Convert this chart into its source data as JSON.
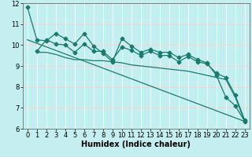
{
  "xlabel": "Humidex (Indice chaleur)",
  "bg_color": "#c5eef0",
  "line_color": "#1a7a6e",
  "grid_color": "#ffffff",
  "grid_hcolor": "#ffbbbb",
  "xlim": [
    -0.5,
    23.5
  ],
  "ylim": [
    6,
    12
  ],
  "xticks": [
    0,
    1,
    2,
    3,
    4,
    5,
    6,
    7,
    8,
    9,
    10,
    11,
    12,
    13,
    14,
    15,
    16,
    17,
    18,
    19,
    20,
    21,
    22,
    23
  ],
  "yticks": [
    6,
    7,
    8,
    9,
    10,
    11,
    12
  ],
  "line1_x": [
    0,
    1,
    2,
    3,
    4,
    5,
    6,
    7,
    8,
    9,
    10,
    11,
    12,
    13,
    14,
    15,
    16,
    17,
    18,
    19,
    20,
    21,
    22,
    23
  ],
  "line1_y": [
    11.8,
    10.25,
    10.2,
    10.55,
    10.3,
    10.05,
    10.55,
    9.95,
    9.6,
    9.2,
    10.3,
    9.95,
    9.65,
    9.8,
    9.65,
    9.65,
    9.4,
    9.55,
    9.3,
    9.15,
    8.55,
    7.5,
    7.1,
    6.35
  ],
  "line2_x": [
    1,
    2,
    3,
    4,
    5,
    6,
    7,
    8,
    9,
    10,
    11,
    12,
    13,
    14,
    15,
    16,
    17,
    18,
    19,
    20,
    21,
    22,
    23
  ],
  "line2_y": [
    9.7,
    10.25,
    10.05,
    10.0,
    9.65,
    10.05,
    9.7,
    9.7,
    9.3,
    9.9,
    9.75,
    9.5,
    9.7,
    9.5,
    9.5,
    9.2,
    9.45,
    9.2,
    9.1,
    8.65,
    8.45,
    7.6,
    6.4
  ],
  "line3_x": [
    1,
    2,
    3,
    4,
    5,
    6,
    7,
    8,
    9,
    10,
    11,
    12,
    13,
    14,
    15,
    16,
    17,
    18,
    19,
    20,
    21,
    22,
    23
  ],
  "line3_y": [
    9.65,
    9.65,
    9.55,
    9.4,
    9.3,
    9.3,
    9.25,
    9.25,
    9.2,
    9.15,
    9.05,
    9.0,
    8.95,
    8.9,
    8.85,
    8.8,
    8.75,
    8.65,
    8.55,
    8.45,
    8.35,
    7.5,
    6.35
  ],
  "line4_x": [
    0,
    23
  ],
  "line4_y": [
    10.25,
    6.35
  ],
  "markersize": 2.5,
  "linewidth": 0.9,
  "xlabel_fontsize": 7,
  "tick_fontsize": 6
}
